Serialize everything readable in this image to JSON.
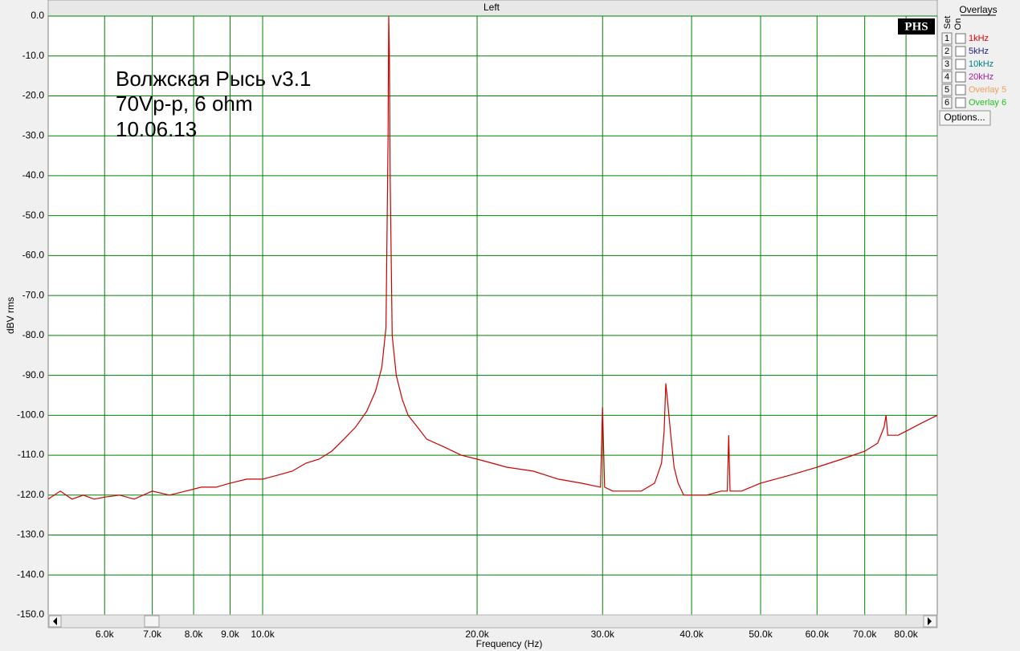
{
  "chart_data": {
    "type": "line",
    "title": "Left",
    "xlabel": "Frequency (Hz)",
    "ylabel": "dBV rms",
    "annotations": [
      "Волжская Рысь v3.1",
      "70Vp-p, 6 ohm",
      "10.06.13"
    ],
    "logo": "PHS",
    "xscale": "log",
    "grid": true,
    "grid_color": "#008000",
    "color": "#cc0000",
    "xlim": [
      5000,
      88500
    ],
    "ylim": [
      -150,
      0
    ],
    "xticks": [
      {
        "value": 6000,
        "label": "6.0k"
      },
      {
        "value": 7000,
        "label": "7.0k"
      },
      {
        "value": 8000,
        "label": "8.0k"
      },
      {
        "value": 9000,
        "label": "9.0k"
      },
      {
        "value": 10000,
        "label": "10.0k"
      },
      {
        "value": 20000,
        "label": "20.0k"
      },
      {
        "value": 30000,
        "label": "30.0k"
      },
      {
        "value": 40000,
        "label": "40.0k"
      },
      {
        "value": 50000,
        "label": "50.0k"
      },
      {
        "value": 60000,
        "label": "60.0k"
      },
      {
        "value": 70000,
        "label": "70.0k"
      },
      {
        "value": 80000,
        "label": "80.0k"
      }
    ],
    "yticks": [
      {
        "value": 0,
        "label": "0.0"
      },
      {
        "value": -10,
        "label": "-10.0"
      },
      {
        "value": -20,
        "label": "-20.0"
      },
      {
        "value": -30,
        "label": "-30.0"
      },
      {
        "value": -40,
        "label": "-40.0"
      },
      {
        "value": -50,
        "label": "-50.0"
      },
      {
        "value": -60,
        "label": "-60.0"
      },
      {
        "value": -70,
        "label": "-70.0"
      },
      {
        "value": -80,
        "label": "-80.0"
      },
      {
        "value": -90,
        "label": "-90.0"
      },
      {
        "value": -100,
        "label": "-100.0"
      },
      {
        "value": -110,
        "label": "-110.0"
      },
      {
        "value": -120,
        "label": "-120.0"
      },
      {
        "value": -130,
        "label": "-130.0"
      },
      {
        "value": -140,
        "label": "-140.0"
      },
      {
        "value": -150,
        "label": "-150.0"
      }
    ],
    "x": [
      5000,
      5200,
      5400,
      5600,
      5800,
      6000,
      6300,
      6600,
      7000,
      7400,
      7800,
      8200,
      8600,
      9000,
      9500,
      10000,
      10500,
      11000,
      11500,
      12000,
      12500,
      13000,
      13500,
      14000,
      14400,
      14700,
      14900,
      15000,
      15030,
      15060,
      15100,
      15200,
      15400,
      15700,
      16000,
      16500,
      17000,
      18000,
      19000,
      20000,
      21000,
      22000,
      24000,
      26000,
      28000,
      29800,
      30000,
      30200,
      31000,
      32000,
      34000,
      35500,
      36300,
      36600,
      36800,
      37000,
      37400,
      37800,
      38300,
      39000,
      40000,
      42000,
      44000,
      44900,
      45100,
      45300,
      47000,
      50000,
      55000,
      60000,
      65000,
      70000,
      73000,
      74500,
      75000,
      75400,
      78000,
      80000,
      84000,
      88500
    ],
    "values": [
      -121,
      -119,
      -121,
      -120,
      -121,
      -120.5,
      -120,
      -121,
      -119,
      -120,
      -119,
      -118,
      -118,
      -117,
      -116,
      -116,
      -115,
      -114,
      -112,
      -111,
      -109,
      -106,
      -103,
      -99,
      -94,
      -88,
      -78,
      -30,
      0,
      -9,
      -40,
      -80,
      -90,
      -96,
      -100,
      -103,
      -106,
      -108,
      -110,
      -111,
      -112,
      -113,
      -114,
      -116,
      -117,
      -118,
      -98,
      -118,
      -119,
      -119,
      -119,
      -117,
      -112,
      -104,
      -92,
      -96,
      -105,
      -113,
      -117,
      -120,
      -120,
      -120,
      -119,
      -119,
      -105,
      -119,
      -119,
      -117,
      -115,
      -113,
      -111,
      -109,
      -107,
      -103,
      -100,
      -105,
      -105,
      -104,
      -102,
      -100
    ]
  },
  "overlays": {
    "title": "Overlays",
    "set_label": "Set",
    "on_label": "On",
    "button": "Options...",
    "items": [
      {
        "number": "1",
        "name": "1kHz",
        "color": "#e00000"
      },
      {
        "number": "2",
        "name": "5kHz",
        "color": "#202080"
      },
      {
        "number": "3",
        "name": "10kHz",
        "color": "#008080"
      },
      {
        "number": "4",
        "name": "20kHz",
        "color": "#a020a0"
      },
      {
        "number": "5",
        "name": "Overlay 5",
        "color": "#f0a060"
      },
      {
        "number": "6",
        "name": "Overlay 6",
        "color": "#20c020"
      }
    ]
  }
}
